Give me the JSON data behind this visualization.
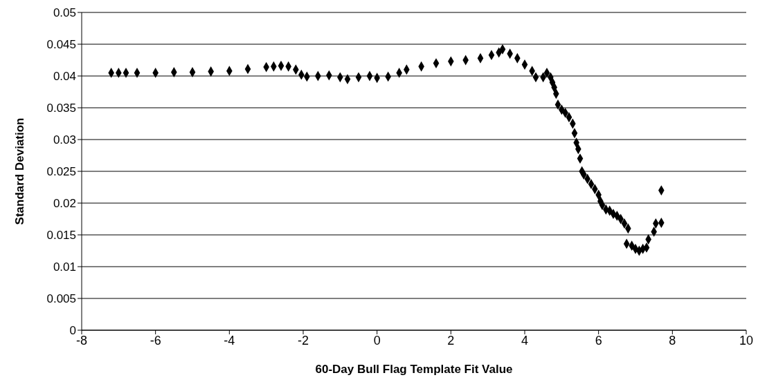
{
  "chart_data": {
    "type": "scatter",
    "xlabel": "60-Day Bull Flag Template Fit Value",
    "ylabel": "Standard Deviation",
    "x": [
      -7.2,
      -7.0,
      -6.8,
      -6.5,
      -6.0,
      -5.5,
      -5.0,
      -4.5,
      -4.0,
      -3.5,
      -3.0,
      -2.8,
      -2.6,
      -2.4,
      -2.2,
      -2.05,
      -1.9,
      -1.6,
      -1.3,
      -1.0,
      -0.8,
      -0.5,
      -0.2,
      0,
      0.3,
      0.6,
      0.8,
      1.2,
      1.6,
      2.0,
      2.4,
      2.8,
      3.1,
      3.3,
      3.4,
      3.6,
      3.8,
      4.0,
      4.2,
      4.3,
      4.5,
      4.6,
      4.7,
      4.75,
      4.8,
      4.85,
      4.9,
      5.0,
      5.1,
      5.2,
      5.3,
      5.35,
      5.4,
      5.45,
      5.5,
      5.55,
      5.6,
      5.7,
      5.8,
      5.9,
      6.0,
      6.05,
      6.1,
      6.2,
      6.3,
      6.4,
      6.5,
      6.6,
      6.7,
      6.8,
      6.76,
      6.9,
      7.0,
      7.1,
      7.2,
      7.3,
      7.35,
      7.5,
      7.55,
      7.7,
      7.7
    ],
    "series": [
      {
        "color": "#000000",
        "values": [
          0.0405,
          0.0405,
          0.0405,
          0.0405,
          0.0405,
          0.0406,
          0.0406,
          0.0407,
          0.0408,
          0.0411,
          0.0414,
          0.0415,
          0.0416,
          0.0415,
          0.041,
          0.0402,
          0.0399,
          0.04,
          0.0401,
          0.0398,
          0.0395,
          0.0398,
          0.04,
          0.0397,
          0.0399,
          0.0405,
          0.041,
          0.0415,
          0.042,
          0.0423,
          0.0425,
          0.0428,
          0.0433,
          0.0437,
          0.0442,
          0.0435,
          0.0428,
          0.0418,
          0.0408,
          0.0398,
          0.0398,
          0.0405,
          0.0398,
          0.039,
          0.0382,
          0.0372,
          0.0355,
          0.0347,
          0.0342,
          0.0335,
          0.0325,
          0.031,
          0.0295,
          0.0285,
          0.027,
          0.025,
          0.0245,
          0.0238,
          0.023,
          0.0222,
          0.0213,
          0.0203,
          0.0197,
          0.019,
          0.0188,
          0.0183,
          0.018,
          0.0175,
          0.0168,
          0.016,
          0.0136,
          0.0133,
          0.0128,
          0.0125,
          0.0128,
          0.013,
          0.0143,
          0.0155,
          0.0168,
          0.0169,
          0.022
        ]
      }
    ],
    "xlim": [
      -8,
      10
    ],
    "xticks": [
      -8,
      -6,
      -4,
      -2,
      0,
      2,
      4,
      6,
      8,
      10
    ],
    "ylim": [
      0,
      0.05
    ],
    "yticks": [
      0,
      0.005,
      0.01,
      0.015,
      0.02,
      0.025,
      0.03,
      0.035,
      0.04,
      0.045,
      0.05
    ],
    "grid": "y",
    "marker": "diamond",
    "legend": false
  }
}
